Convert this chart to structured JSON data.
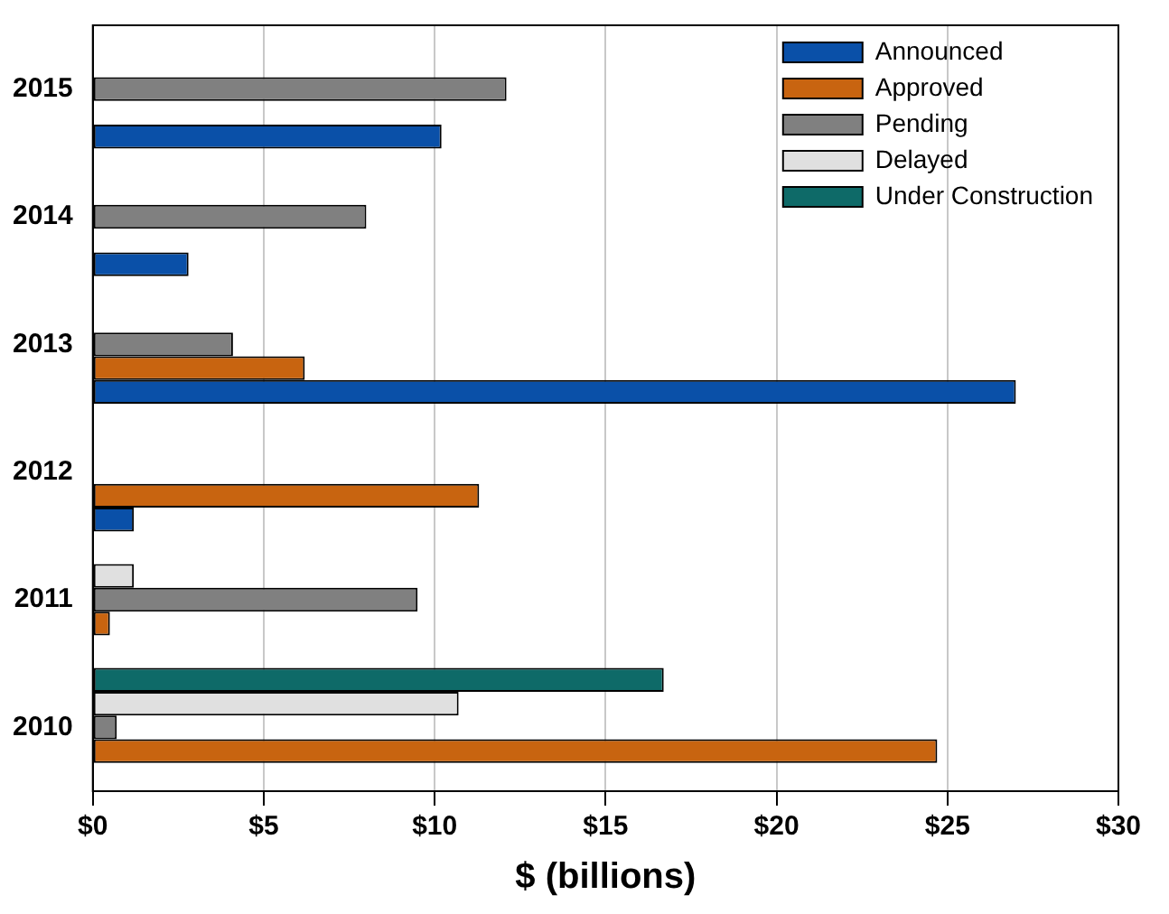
{
  "chart_data": {
    "type": "bar",
    "orientation": "horizontal",
    "xlabel": "$ (billions)",
    "categories": [
      "2015",
      "2014",
      "2013",
      "2012",
      "2011",
      "2010"
    ],
    "series": [
      {
        "name": "Announced",
        "color": "#0a50a8",
        "values": [
          10.2,
          2.8,
          27.0,
          1.2,
          null,
          null
        ]
      },
      {
        "name": "Approved",
        "color": "#c86410",
        "values": [
          null,
          null,
          6.2,
          11.3,
          0.5,
          24.7
        ]
      },
      {
        "name": "Pending",
        "color": "#808080",
        "values": [
          12.1,
          8.0,
          4.1,
          null,
          9.5,
          0.7
        ]
      },
      {
        "name": "Delayed",
        "color": "#e0e0e0",
        "values": [
          null,
          null,
          null,
          null,
          1.2,
          10.7
        ]
      },
      {
        "name": "Under Construction",
        "color": "#0e6a68",
        "values": [
          null,
          null,
          null,
          null,
          null,
          16.7
        ]
      }
    ],
    "xlim": [
      0,
      30
    ],
    "xticks": [
      {
        "value": 0,
        "label": "$0"
      },
      {
        "value": 5,
        "label": "$5"
      },
      {
        "value": 10,
        "label": "$10"
      },
      {
        "value": 15,
        "label": "$15"
      },
      {
        "value": 20,
        "label": "$20"
      },
      {
        "value": 25,
        "label": "$25"
      },
      {
        "value": 30,
        "label": "$30"
      }
    ],
    "grid": "x",
    "legend": "top right"
  }
}
